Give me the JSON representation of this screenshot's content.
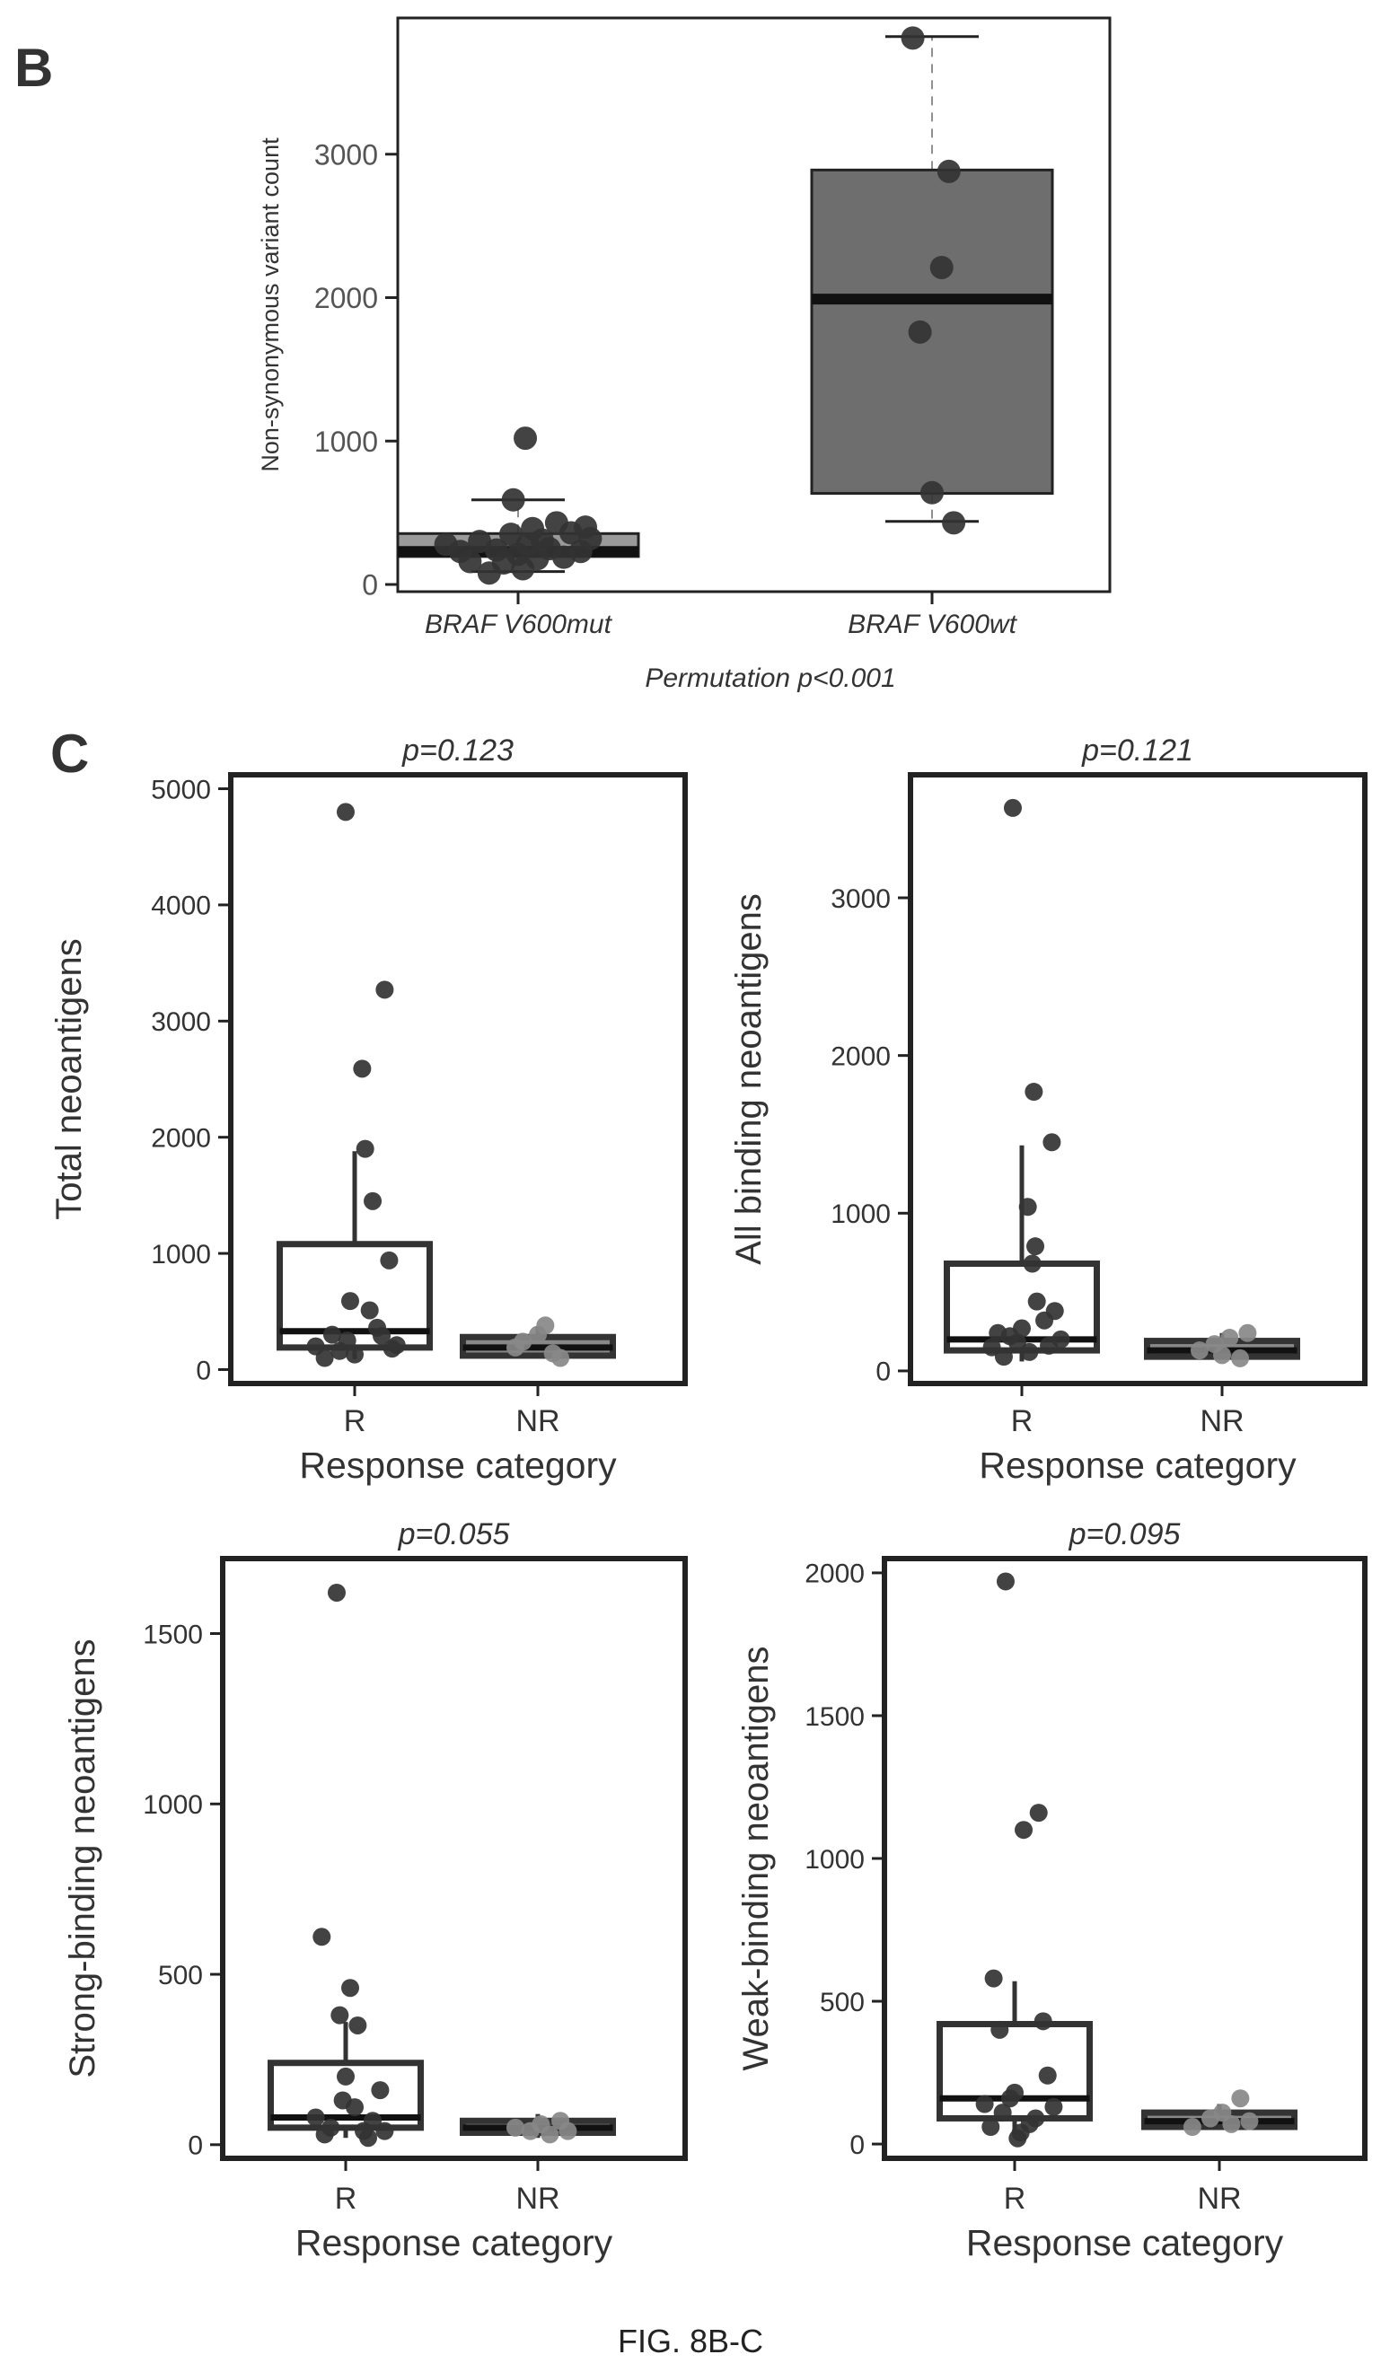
{
  "figure": {
    "panel_b_letter": "B",
    "panel_c_letter": "C",
    "caption": "FIG. 8B-C"
  },
  "chart_data": [
    {
      "id": "b",
      "type": "box",
      "title": "",
      "xlabel": "Permutation p<0.001",
      "ylabel": "Non-synonymous variant count",
      "categories": [
        "BRAF V600mut",
        "BRAF V600wt"
      ],
      "ylim": [
        -50,
        3950
      ],
      "yticks": [
        0,
        1000,
        2000,
        3000
      ],
      "fill_colors": [
        "#9a9a9a",
        "#6e6e6e"
      ],
      "boxes": [
        {
          "q1": 195,
          "median": 230,
          "q3": 355,
          "whisker_low": 90,
          "whisker_high": 590
        },
        {
          "q1": 635,
          "median": 1990,
          "q3": 2890,
          "whisker_low": 440,
          "whisker_high": 3820
        }
      ],
      "points": [
        [
          [
            -0.3,
            280
          ],
          [
            -0.24,
            230
          ],
          [
            -0.2,
            160
          ],
          [
            -0.16,
            300
          ],
          [
            -0.12,
            80
          ],
          [
            -0.09,
            240
          ],
          [
            -0.06,
            150
          ],
          [
            -0.03,
            350
          ],
          [
            0.0,
            210
          ],
          [
            0.02,
            110
          ],
          [
            0.04,
            280
          ],
          [
            0.06,
            390
          ],
          [
            0.08,
            180
          ],
          [
            0.1,
            310
          ],
          [
            0.13,
            250
          ],
          [
            0.16,
            430
          ],
          [
            0.19,
            190
          ],
          [
            0.22,
            360
          ],
          [
            0.26,
            230
          ],
          [
            0.28,
            400
          ],
          [
            0.3,
            320
          ],
          [
            -0.02,
            590
          ],
          [
            0.03,
            1020
          ]
        ],
        [
          [
            -0.08,
            3810
          ],
          [
            0.07,
            2880
          ],
          [
            0.04,
            2210
          ],
          [
            -0.05,
            1760
          ],
          [
            0.0,
            640
          ],
          [
            0.09,
            430
          ]
        ]
      ]
    },
    {
      "id": "c1",
      "type": "box",
      "title": "p=0.123",
      "xlabel": "Response category",
      "ylabel": "Total neoantigens",
      "categories": [
        "R",
        "NR"
      ],
      "ylim": [
        -120,
        5120
      ],
      "yticks": [
        0,
        1000,
        2000,
        3000,
        4000,
        5000
      ],
      "fill_colors": [
        "#ffffff",
        "#888888"
      ],
      "boxes": [
        {
          "q1": 190,
          "median": 330,
          "q3": 1080,
          "whisker_low": 90,
          "whisker_high": 1880
        },
        {
          "q1": 120,
          "median": 190,
          "q3": 280,
          "whisker_low": 100,
          "whisker_high": 370
        }
      ],
      "points": [
        [
          [
            -0.06,
            4800
          ],
          [
            0.2,
            3270
          ],
          [
            0.05,
            2590
          ],
          [
            0.07,
            1900
          ],
          [
            0.12,
            1450
          ],
          [
            0.23,
            940
          ],
          [
            -0.03,
            590
          ],
          [
            0.1,
            510
          ],
          [
            -0.1,
            160
          ],
          [
            -0.2,
            100
          ],
          [
            0.25,
            180
          ],
          [
            -0.05,
            250
          ],
          [
            0.18,
            290
          ],
          [
            0.28,
            210
          ],
          [
            0.0,
            130
          ],
          [
            -0.15,
            300
          ],
          [
            0.15,
            360
          ],
          [
            -0.26,
            200
          ]
        ],
        [
          [
            -0.1,
            240
          ],
          [
            0.0,
            300
          ],
          [
            0.1,
            140
          ],
          [
            0.05,
            380
          ],
          [
            -0.15,
            190
          ],
          [
            0.15,
            100
          ]
        ]
      ]
    },
    {
      "id": "c2",
      "type": "box",
      "title": "p=0.121",
      "xlabel": "Response category",
      "ylabel": "All binding neoantigens",
      "categories": [
        "R",
        "NR"
      ],
      "ylim": [
        -80,
        3780
      ],
      "yticks": [
        0,
        1000,
        2000,
        3000
      ],
      "fill_colors": [
        "#ffffff",
        "#888888"
      ],
      "boxes": [
        {
          "q1": 130,
          "median": 200,
          "q3": 680,
          "whisker_low": 60,
          "whisker_high": 1430
        },
        {
          "q1": 90,
          "median": 130,
          "q3": 190,
          "whisker_low": 80,
          "whisker_high": 240
        }
      ],
      "points": [
        [
          [
            -0.06,
            3570
          ],
          [
            0.08,
            1770
          ],
          [
            0.2,
            1450
          ],
          [
            0.04,
            1040
          ],
          [
            0.09,
            790
          ],
          [
            0.07,
            680
          ],
          [
            0.1,
            440
          ],
          [
            0.22,
            380
          ],
          [
            -0.2,
            150
          ],
          [
            -0.12,
            90
          ],
          [
            0.0,
            270
          ],
          [
            -0.03,
            180
          ],
          [
            0.15,
            320
          ],
          [
            0.26,
            200
          ],
          [
            -0.08,
            220
          ],
          [
            0.05,
            120
          ],
          [
            0.18,
            160
          ],
          [
            -0.16,
            240
          ]
        ],
        [
          [
            -0.15,
            130
          ],
          [
            -0.05,
            170
          ],
          [
            0.0,
            100
          ],
          [
            0.05,
            210
          ],
          [
            0.12,
            80
          ],
          [
            0.17,
            240
          ]
        ]
      ]
    },
    {
      "id": "c3",
      "type": "box",
      "title": "p=0.055",
      "xlabel": "Response category",
      "ylabel": "Strong-binding neoantigens",
      "categories": [
        "R",
        "NR"
      ],
      "ylim": [
        -40,
        1720
      ],
      "yticks": [
        0,
        500,
        1000,
        1500
      ],
      "fill_colors": [
        "#ffffff",
        "#888888"
      ],
      "boxes": [
        {
          "q1": 50,
          "median": 80,
          "q3": 240,
          "whisker_low": 20,
          "whisker_high": 360
        },
        {
          "q1": 35,
          "median": 50,
          "q3": 70,
          "whisker_low": 20,
          "whisker_high": 90
        }
      ],
      "points": [
        [
          [
            -0.06,
            1620
          ],
          [
            -0.16,
            610
          ],
          [
            0.03,
            460
          ],
          [
            -0.04,
            380
          ],
          [
            0.08,
            350
          ],
          [
            0.0,
            200
          ],
          [
            0.23,
            160
          ],
          [
            -0.2,
            80
          ],
          [
            -0.1,
            50
          ],
          [
            0.12,
            40
          ],
          [
            0.18,
            70
          ],
          [
            -0.14,
            30
          ],
          [
            0.06,
            110
          ],
          [
            0.26,
            40
          ],
          [
            -0.02,
            130
          ],
          [
            0.15,
            20
          ]
        ],
        [
          [
            -0.15,
            50
          ],
          [
            -0.05,
            40
          ],
          [
            0.02,
            60
          ],
          [
            0.08,
            30
          ],
          [
            0.15,
            70
          ],
          [
            0.2,
            40
          ]
        ]
      ]
    },
    {
      "id": "c4",
      "type": "box",
      "title": "p=0.095",
      "xlabel": "Response category",
      "ylabel": "Weak-binding neoantigens",
      "categories": [
        "R",
        "NR"
      ],
      "ylim": [
        -50,
        2050
      ],
      "yticks": [
        0,
        500,
        1000,
        1500,
        2000
      ],
      "fill_colors": [
        "#ffffff",
        "#888888"
      ],
      "boxes": [
        {
          "q1": 90,
          "median": 160,
          "q3": 420,
          "whisker_low": 30,
          "whisker_high": 570
        },
        {
          "q1": 60,
          "median": 80,
          "q3": 110,
          "whisker_low": 50,
          "whisker_high": 140
        }
      ],
      "points": [
        [
          [
            -0.06,
            1970
          ],
          [
            0.06,
            1100
          ],
          [
            0.16,
            1160
          ],
          [
            -0.14,
            580
          ],
          [
            -0.1,
            400
          ],
          [
            0.19,
            430
          ],
          [
            0.22,
            240
          ],
          [
            0.0,
            180
          ],
          [
            -0.2,
            140
          ],
          [
            -0.08,
            110
          ],
          [
            0.1,
            70
          ],
          [
            -0.16,
            60
          ],
          [
            0.26,
            130
          ],
          [
            0.04,
            40
          ],
          [
            -0.03,
            160
          ],
          [
            0.14,
            90
          ],
          [
            0.02,
            20
          ]
        ],
        [
          [
            -0.18,
            60
          ],
          [
            -0.06,
            90
          ],
          [
            0.02,
            110
          ],
          [
            0.08,
            70
          ],
          [
            0.14,
            160
          ],
          [
            0.2,
            80
          ]
        ]
      ]
    }
  ]
}
